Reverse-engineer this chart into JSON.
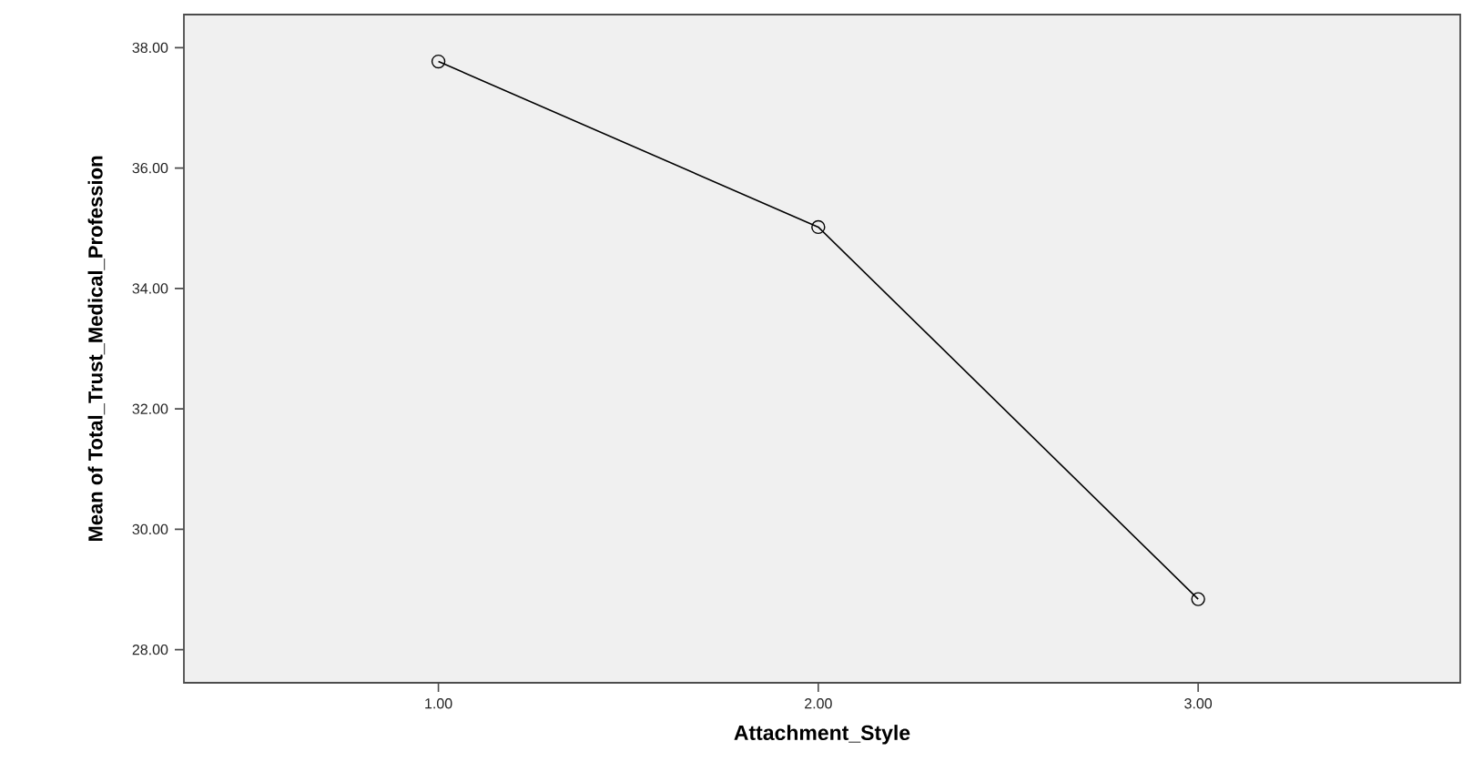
{
  "chart_data": {
    "type": "line",
    "xlabel": "Attachment_Style",
    "ylabel": "Mean of Total_Trust_Medical_Profession",
    "categories": [
      "1.00",
      "2.00",
      "3.00"
    ],
    "values": [
      37.77,
      35.02,
      28.84
    ],
    "color": "#000000",
    "marker": "circle",
    "line_style": "solid",
    "ylim": [
      27.45,
      38.55
    ],
    "yticks": [
      {
        "value": 28,
        "label": "28.00"
      },
      {
        "value": 30,
        "label": "30.00"
      },
      {
        "value": 32,
        "label": "32.00"
      },
      {
        "value": 34,
        "label": "34.00"
      },
      {
        "value": 36,
        "label": "36.00"
      },
      {
        "value": 38,
        "label": "38.00"
      }
    ]
  }
}
